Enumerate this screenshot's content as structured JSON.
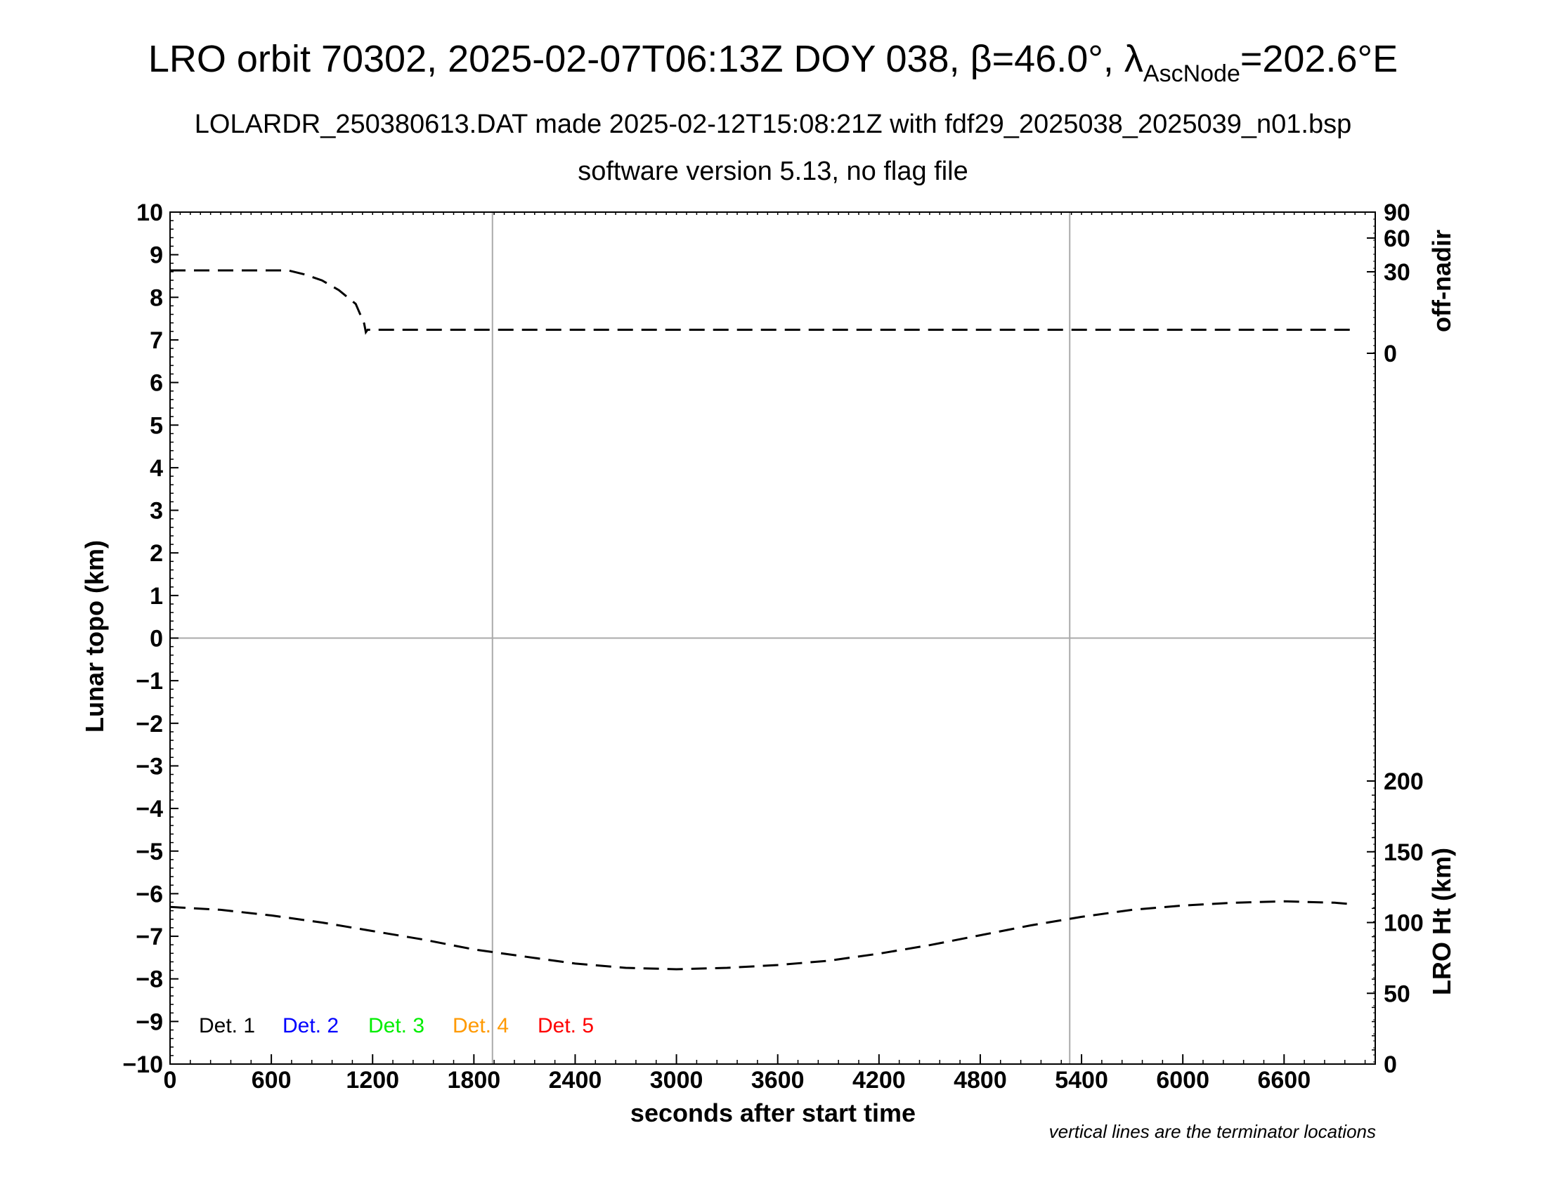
{
  "chart_data": {
    "type": "line",
    "title_main": "LRO orbit 70302, 2025-02-07T06:13Z DOY 038, β=46.0°, λ",
    "title_sub": "AscNode",
    "title_end": "=202.6°E",
    "subtitle1": "LOLARDR_250380613.DAT made 2025-02-12T15:08:21Z with fdf29_2025038_2025039_n01.bsp",
    "subtitle2": "software version 5.13, no flag file",
    "xlabel": "seconds after start time",
    "ylabel_left": "Lunar topo (km)",
    "ylabel_right_top": "off-nadir",
    "ylabel_right_bottom": "LRO Ht (km)",
    "xlim": [
      0,
      7140
    ],
    "xticks": [
      0,
      600,
      1200,
      1800,
      2400,
      3000,
      3600,
      4200,
      4800,
      5400,
      6000,
      6600
    ],
    "ylim_left": [
      -10,
      10
    ],
    "yticks_left": [
      "10",
      "9",
      "8",
      "7",
      "6",
      "5",
      "4",
      "3",
      "2",
      "1",
      "0",
      "−1",
      "−2",
      "−3",
      "−4",
      "−5",
      "−6",
      "−7",
      "−8",
      "−9",
      "−10"
    ],
    "right_top_ticks": [
      "90",
      "60",
      "30",
      "0"
    ],
    "right_bottom_ticks": [
      "200",
      "150",
      "100",
      "50",
      "0"
    ],
    "ylim_height": [
      0,
      300
    ],
    "terminators_s": [
      1910,
      5330
    ],
    "note": "vertical lines are the terminator locations",
    "legend": [
      {
        "label": "Det. 1",
        "color": "#000000"
      },
      {
        "label": "Det. 2",
        "color": "#0000ff"
      },
      {
        "label": "Det. 3",
        "color": "#00ee00"
      },
      {
        "label": "Det. 4",
        "color": "#ff9900"
      },
      {
        "label": "Det. 5",
        "color": "#ff0000"
      }
    ],
    "series": [
      {
        "quantity": "off-nadir",
        "x": [
          0,
          300,
          600,
          700,
          800,
          900,
          1000,
          1100,
          1150,
          1160,
          1170,
          1200,
          1800,
          3000,
          4200,
          5400,
          6000,
          6600,
          7000
        ],
        "y": [
          31,
          31,
          31,
          31,
          28,
          24,
          18,
          11,
          4,
          2,
          2.5,
          2.5,
          2.5,
          2.5,
          2.5,
          2.5,
          2.5,
          2.5,
          2.5
        ]
      },
      {
        "quantity": "LRO Ht (km)",
        "x": [
          0,
          300,
          600,
          900,
          1200,
          1500,
          1800,
          2100,
          2400,
          2700,
          3000,
          3300,
          3600,
          3900,
          4200,
          4500,
          4800,
          5100,
          5400,
          5700,
          6000,
          6300,
          6600,
          6900,
          7000
        ],
        "y": [
          111,
          109,
          105,
          100,
          94,
          88,
          81,
          76,
          71,
          68,
          67,
          68,
          70,
          73,
          78,
          84,
          91,
          98,
          104,
          109,
          112,
          114,
          115,
          114,
          113
        ]
      }
    ]
  }
}
